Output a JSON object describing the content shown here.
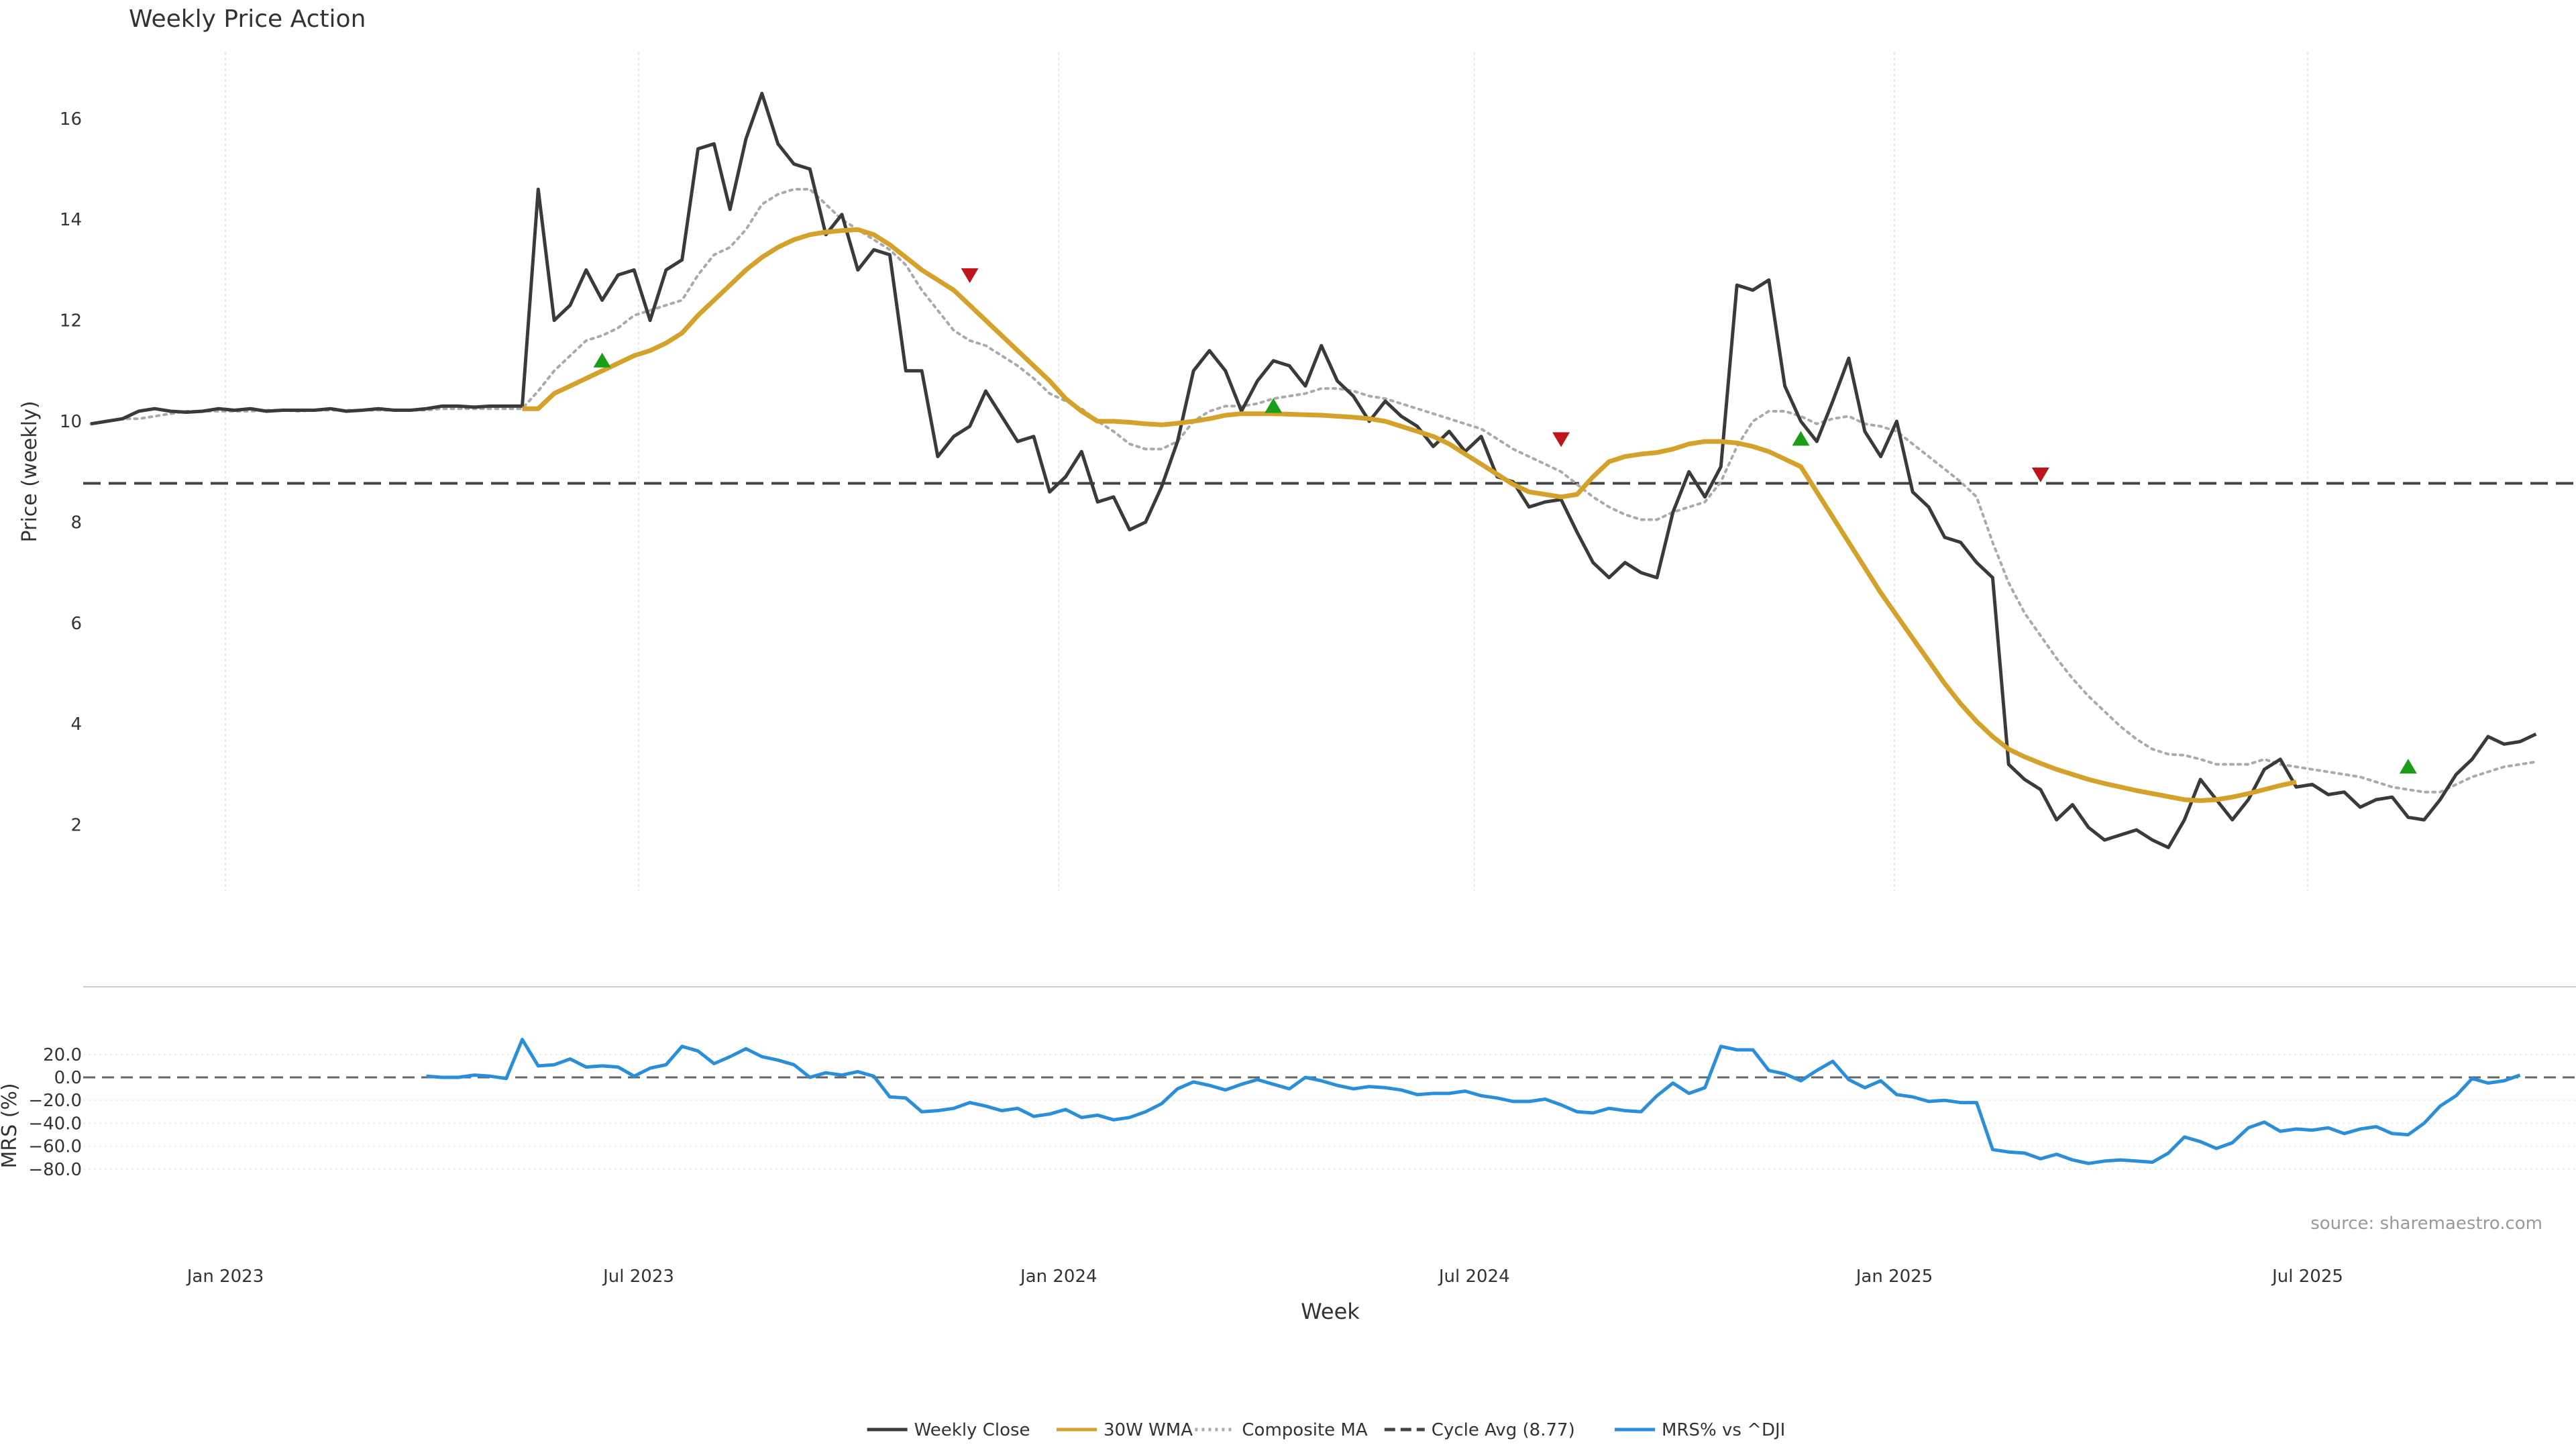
{
  "chart_data": [
    {
      "type": "line",
      "title": "Weekly Price Action",
      "ylabel": "Price (weekly)",
      "ylim": [
        0.8,
        17.4
      ],
      "y_ticks": [
        2,
        4,
        6,
        8,
        10,
        12,
        14,
        16
      ],
      "x_range": [
        "2022-11-03",
        "2025-10-23"
      ],
      "x_ticks": [
        {
          "date": "2023-01-01",
          "label": "Jan 2023"
        },
        {
          "date": "2023-07-01",
          "label": "Jul 2023"
        },
        {
          "date": "2024-01-01",
          "label": "Jan 2024"
        },
        {
          "date": "2024-07-01",
          "label": "Jul 2024"
        },
        {
          "date": "2025-01-01",
          "label": "Jan 2025"
        },
        {
          "date": "2025-07-01",
          "label": "Jul 2025"
        }
      ],
      "grid": "vertical",
      "start_date": "2022-11-03",
      "week_step_days": 7,
      "series": [
        {
          "name": "Weekly Close",
          "color": "#3a3a3a",
          "values": [
            9.95,
            10.0,
            10.05,
            10.2,
            10.25,
            10.2,
            10.18,
            10.2,
            10.25,
            10.22,
            10.25,
            10.2,
            10.22,
            10.22,
            10.22,
            10.25,
            10.2,
            10.22,
            10.25,
            10.22,
            10.22,
            10.25,
            10.3,
            10.3,
            10.28,
            10.3,
            10.3,
            10.3,
            14.6,
            12.0,
            12.3,
            13.0,
            12.4,
            12.9,
            13.0,
            12.0,
            13.0,
            13.2,
            15.4,
            15.5,
            14.2,
            15.6,
            16.5,
            15.5,
            15.1,
            15.0,
            13.7,
            14.1,
            13.0,
            13.4,
            13.3,
            11.0,
            11.0,
            9.3,
            9.7,
            9.9,
            10.6,
            10.1,
            9.6,
            9.7,
            8.6,
            8.9,
            9.4,
            8.4,
            8.5,
            7.85,
            8.0,
            8.7,
            9.6,
            11.0,
            11.4,
            11.0,
            10.2,
            10.8,
            11.2,
            11.1,
            10.7,
            11.5,
            10.8,
            10.5,
            10.0,
            10.4,
            10.1,
            9.9,
            9.5,
            9.8,
            9.4,
            9.7,
            8.9,
            8.8,
            8.3,
            8.4,
            8.45,
            7.8,
            7.2,
            6.9,
            7.2,
            7.0,
            6.9,
            8.2,
            9.0,
            8.5,
            9.1,
            12.7,
            12.6,
            12.8,
            10.7,
            10.0,
            9.6,
            10.4,
            11.25,
            9.8,
            9.3,
            10.0,
            8.6,
            8.3,
            7.7,
            7.6,
            7.2,
            6.9,
            3.2,
            2.9,
            2.7,
            2.1,
            2.4,
            1.95,
            1.7,
            1.8,
            1.9,
            1.7,
            1.55,
            2.1,
            2.9,
            2.5,
            2.1,
            2.5,
            3.1,
            3.3,
            2.75,
            2.8,
            2.6,
            2.65,
            2.35,
            2.5,
            2.55,
            2.15,
            2.1,
            2.5,
            3.0,
            3.3,
            3.75,
            3.6,
            3.65,
            3.8
          ]
        },
        {
          "name": "30W WMA",
          "color": "#d4a22a",
          "start_index": 27,
          "values": [
            10.25,
            10.25,
            10.55,
            10.7,
            10.85,
            11.0,
            11.15,
            11.3,
            11.4,
            11.55,
            11.75,
            12.1,
            12.4,
            12.7,
            13.0,
            13.25,
            13.45,
            13.6,
            13.7,
            13.75,
            13.78,
            13.8,
            13.7,
            13.5,
            13.25,
            13.0,
            12.8,
            12.6,
            12.3,
            12.0,
            11.7,
            11.4,
            11.1,
            10.8,
            10.45,
            10.2,
            10.0,
            10.0,
            9.98,
            9.95,
            9.93,
            9.96,
            10.0,
            10.05,
            10.12,
            10.15,
            10.15,
            10.15,
            10.14,
            10.13,
            10.12,
            10.1,
            10.08,
            10.05,
            10.0,
            9.9,
            9.8,
            9.7,
            9.55,
            9.35,
            9.15,
            8.95,
            8.75,
            8.6,
            8.55,
            8.5,
            8.55,
            8.9,
            9.2,
            9.3,
            9.35,
            9.38,
            9.45,
            9.55,
            9.6,
            9.6,
            9.57,
            9.5,
            9.4,
            9.25,
            9.1,
            8.6,
            8.1,
            7.6,
            7.1,
            6.6,
            6.15,
            5.7,
            5.25,
            4.8,
            4.4,
            4.05,
            3.75,
            3.5,
            3.35,
            3.22,
            3.1,
            3.0,
            2.9,
            2.82,
            2.75,
            2.68,
            2.62,
            2.56,
            2.5,
            2.48,
            2.5,
            2.55,
            2.62,
            2.7,
            2.78,
            2.85
          ]
        },
        {
          "name": "Composite MA",
          "color": "#aaaaaa",
          "values": [
            9.95,
            10.0,
            10.05,
            10.05,
            10.1,
            10.15,
            10.2,
            10.2,
            10.2,
            10.2,
            10.2,
            10.22,
            10.22,
            10.2,
            10.22,
            10.22,
            10.22,
            10.22,
            10.22,
            10.22,
            10.22,
            10.22,
            10.25,
            10.25,
            10.25,
            10.25,
            10.25,
            10.25,
            10.6,
            11.0,
            11.3,
            11.6,
            11.7,
            11.85,
            12.1,
            12.2,
            12.3,
            12.4,
            12.9,
            13.3,
            13.45,
            13.8,
            14.3,
            14.5,
            14.6,
            14.6,
            14.3,
            14.0,
            13.8,
            13.6,
            13.4,
            13.1,
            12.6,
            12.2,
            11.8,
            11.6,
            11.5,
            11.3,
            11.1,
            10.85,
            10.55,
            10.4,
            10.25,
            10.0,
            9.8,
            9.55,
            9.45,
            9.45,
            9.6,
            10.0,
            10.2,
            10.3,
            10.3,
            10.35,
            10.45,
            10.5,
            10.55,
            10.65,
            10.65,
            10.6,
            10.5,
            10.45,
            10.35,
            10.25,
            10.15,
            10.05,
            9.95,
            9.85,
            9.65,
            9.45,
            9.3,
            9.15,
            9.0,
            8.75,
            8.5,
            8.3,
            8.15,
            8.05,
            8.05,
            8.2,
            8.3,
            8.4,
            8.8,
            9.5,
            10.0,
            10.2,
            10.2,
            10.1,
            9.95,
            10.05,
            10.1,
            9.95,
            9.9,
            9.8,
            9.55,
            9.3,
            9.05,
            8.8,
            8.5,
            7.6,
            6.8,
            6.2,
            5.75,
            5.3,
            4.9,
            4.55,
            4.25,
            3.95,
            3.7,
            3.5,
            3.4,
            3.38,
            3.3,
            3.2,
            3.2,
            3.2,
            3.3,
            3.2,
            3.15,
            3.1,
            3.05,
            3.0,
            2.95,
            2.85,
            2.75,
            2.7,
            2.65,
            2.65,
            2.8,
            2.95,
            3.05,
            3.15,
            3.2,
            3.25
          ]
        },
        {
          "name": "Cycle Avg (8.77)",
          "color": "#444444",
          "value": 8.77
        }
      ],
      "markers": {
        "buy": [
          {
            "date": "2023-06-15",
            "value": 11.2
          },
          {
            "date": "2024-04-04",
            "value": 10.3
          },
          {
            "date": "2024-11-21",
            "value": 9.65
          },
          {
            "date": "2025-08-14",
            "value": 3.15
          }
        ],
        "sell": [
          {
            "date": "2023-11-23",
            "value": 12.9
          },
          {
            "date": "2024-08-08",
            "value": 9.65
          },
          {
            "date": "2025-03-06",
            "value": 8.95
          }
        ],
        "buy_color": "#1a9e1a",
        "sell_color": "#c0141c"
      }
    },
    {
      "type": "line",
      "xlabel": "Week",
      "ylabel": "MRS (%)",
      "ylim": [
        -80,
        36
      ],
      "y_ticks": [
        -80,
        -60,
        -40,
        -20,
        0,
        20
      ],
      "y_tick_labels": [
        "−80.0",
        "−60.0",
        "−40.0",
        "−20.0",
        "0.0",
        "20.0"
      ],
      "zero_line": 0,
      "series": [
        {
          "name": "MRS% vs ^DJI",
          "color": "#2a8fd8",
          "start_index": 21,
          "values": [
            1,
            0,
            0,
            2,
            1,
            -1,
            33,
            10,
            11,
            16,
            9,
            10,
            9,
            1,
            8,
            11,
            27,
            23,
            12,
            18,
            25,
            18,
            15,
            11,
            0,
            4,
            2,
            5,
            1,
            -17,
            -18,
            -30,
            -29,
            -27,
            -22,
            -25,
            -29,
            -27,
            -34,
            -32,
            -28,
            -35,
            -33,
            -37,
            -35,
            -30,
            -23,
            -10,
            -4,
            -7,
            -11,
            -6,
            -2,
            -6,
            -10,
            0,
            -3,
            -7,
            -10,
            -8,
            -9,
            -11,
            -15,
            -14,
            -14,
            -12,
            -16,
            -18,
            -21,
            -21,
            -19,
            -24,
            -30,
            -31,
            -27,
            -29,
            -30,
            -16,
            -5,
            -14,
            -9,
            27,
            24,
            24,
            6,
            3,
            -3,
            6,
            14,
            -2,
            -9,
            -3,
            -15,
            -17,
            -21,
            -20,
            -22,
            -22,
            -63,
            -65,
            -66,
            -71,
            -67,
            -72,
            -75,
            -73,
            -72,
            -73,
            -74,
            -66,
            -52,
            -56,
            -62,
            -57,
            -44,
            -39,
            -47,
            -45,
            -46,
            -44,
            -49,
            -45,
            -43,
            -49,
            -50,
            -40,
            -25,
            -16,
            -1,
            -5,
            -3,
            2
          ]
        }
      ],
      "annotation": "source: sharemaestro.com"
    }
  ],
  "legend": {
    "placement": "bottom-center",
    "items": [
      {
        "label": "Weekly Close",
        "color": "#3a3a3a",
        "style": "solid"
      },
      {
        "label": "30W WMA",
        "color": "#d4a22a",
        "style": "solid"
      },
      {
        "label": "Composite MA",
        "color": "#aaaaaa",
        "style": "dotted"
      },
      {
        "label": "Cycle Avg (8.77)",
        "color": "#444444",
        "style": "dashed"
      },
      {
        "label": "MRS% vs ^DJI",
        "color": "#2a8fd8",
        "style": "solid"
      }
    ]
  }
}
